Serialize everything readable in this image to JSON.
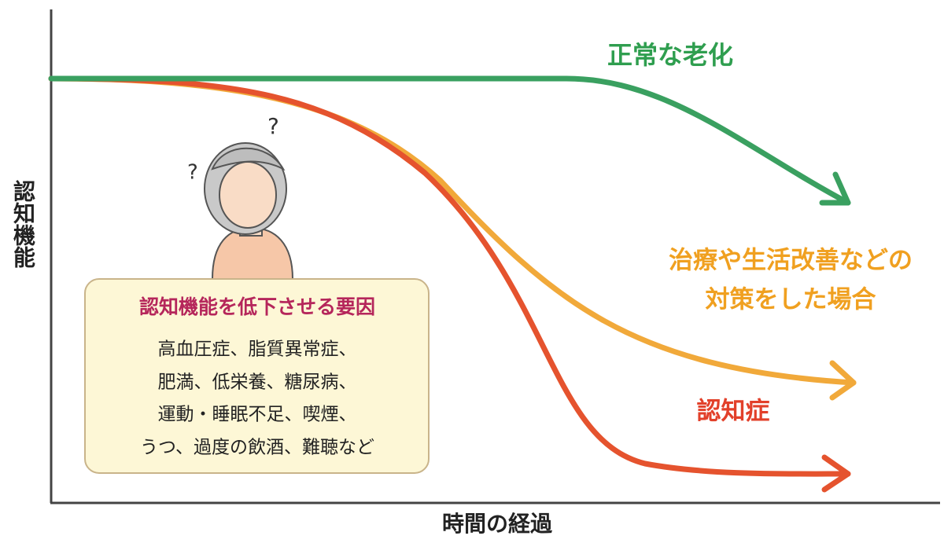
{
  "axes": {
    "y_label": "認知機能",
    "x_label": "時間の経過"
  },
  "curves": [
    {
      "lines": [
        "正常な老化"
      ]
    },
    {
      "lines": [
        "治療や生活改善などの",
        "対策をした場合"
      ]
    },
    {
      "lines": [
        "認知症"
      ]
    }
  ],
  "factor_box": {
    "title": "認知機能を低下させる要因",
    "lines": [
      "高血圧症、脂質異常症、",
      "肥満、低栄養、糖尿病、",
      "運動・睡眠不足、喫煙、",
      "うつ、過度の飲酒、難聴など"
    ]
  }
}
